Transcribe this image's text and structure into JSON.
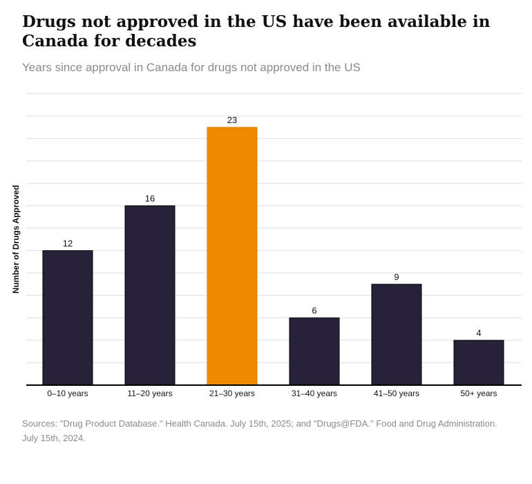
{
  "title": "Drugs not approved in the US have been available in Canada for decades",
  "subtitle": "Years since approval in Canada for drugs not approved in the US",
  "source": "Sources: \"Drug Product Database.\" Health Canada. July 15th, 2025; and \"Drugs@FDA.\" Food and Drug Administration. July 15th, 2024.",
  "chart_data": {
    "type": "bar",
    "categories": [
      "0–10 years",
      "11–20 years",
      "21–30 years",
      "31–40 years",
      "41–50 years",
      "50+ years"
    ],
    "values": [
      12,
      16,
      23,
      6,
      9,
      4
    ],
    "ylabel": "Number of Drugs Approved",
    "xlabel": "",
    "ylim": [
      0,
      26
    ],
    "grid": true,
    "highlight_index": 2,
    "colors": {
      "default": "#272239",
      "highlight": "#ee8b00"
    }
  }
}
